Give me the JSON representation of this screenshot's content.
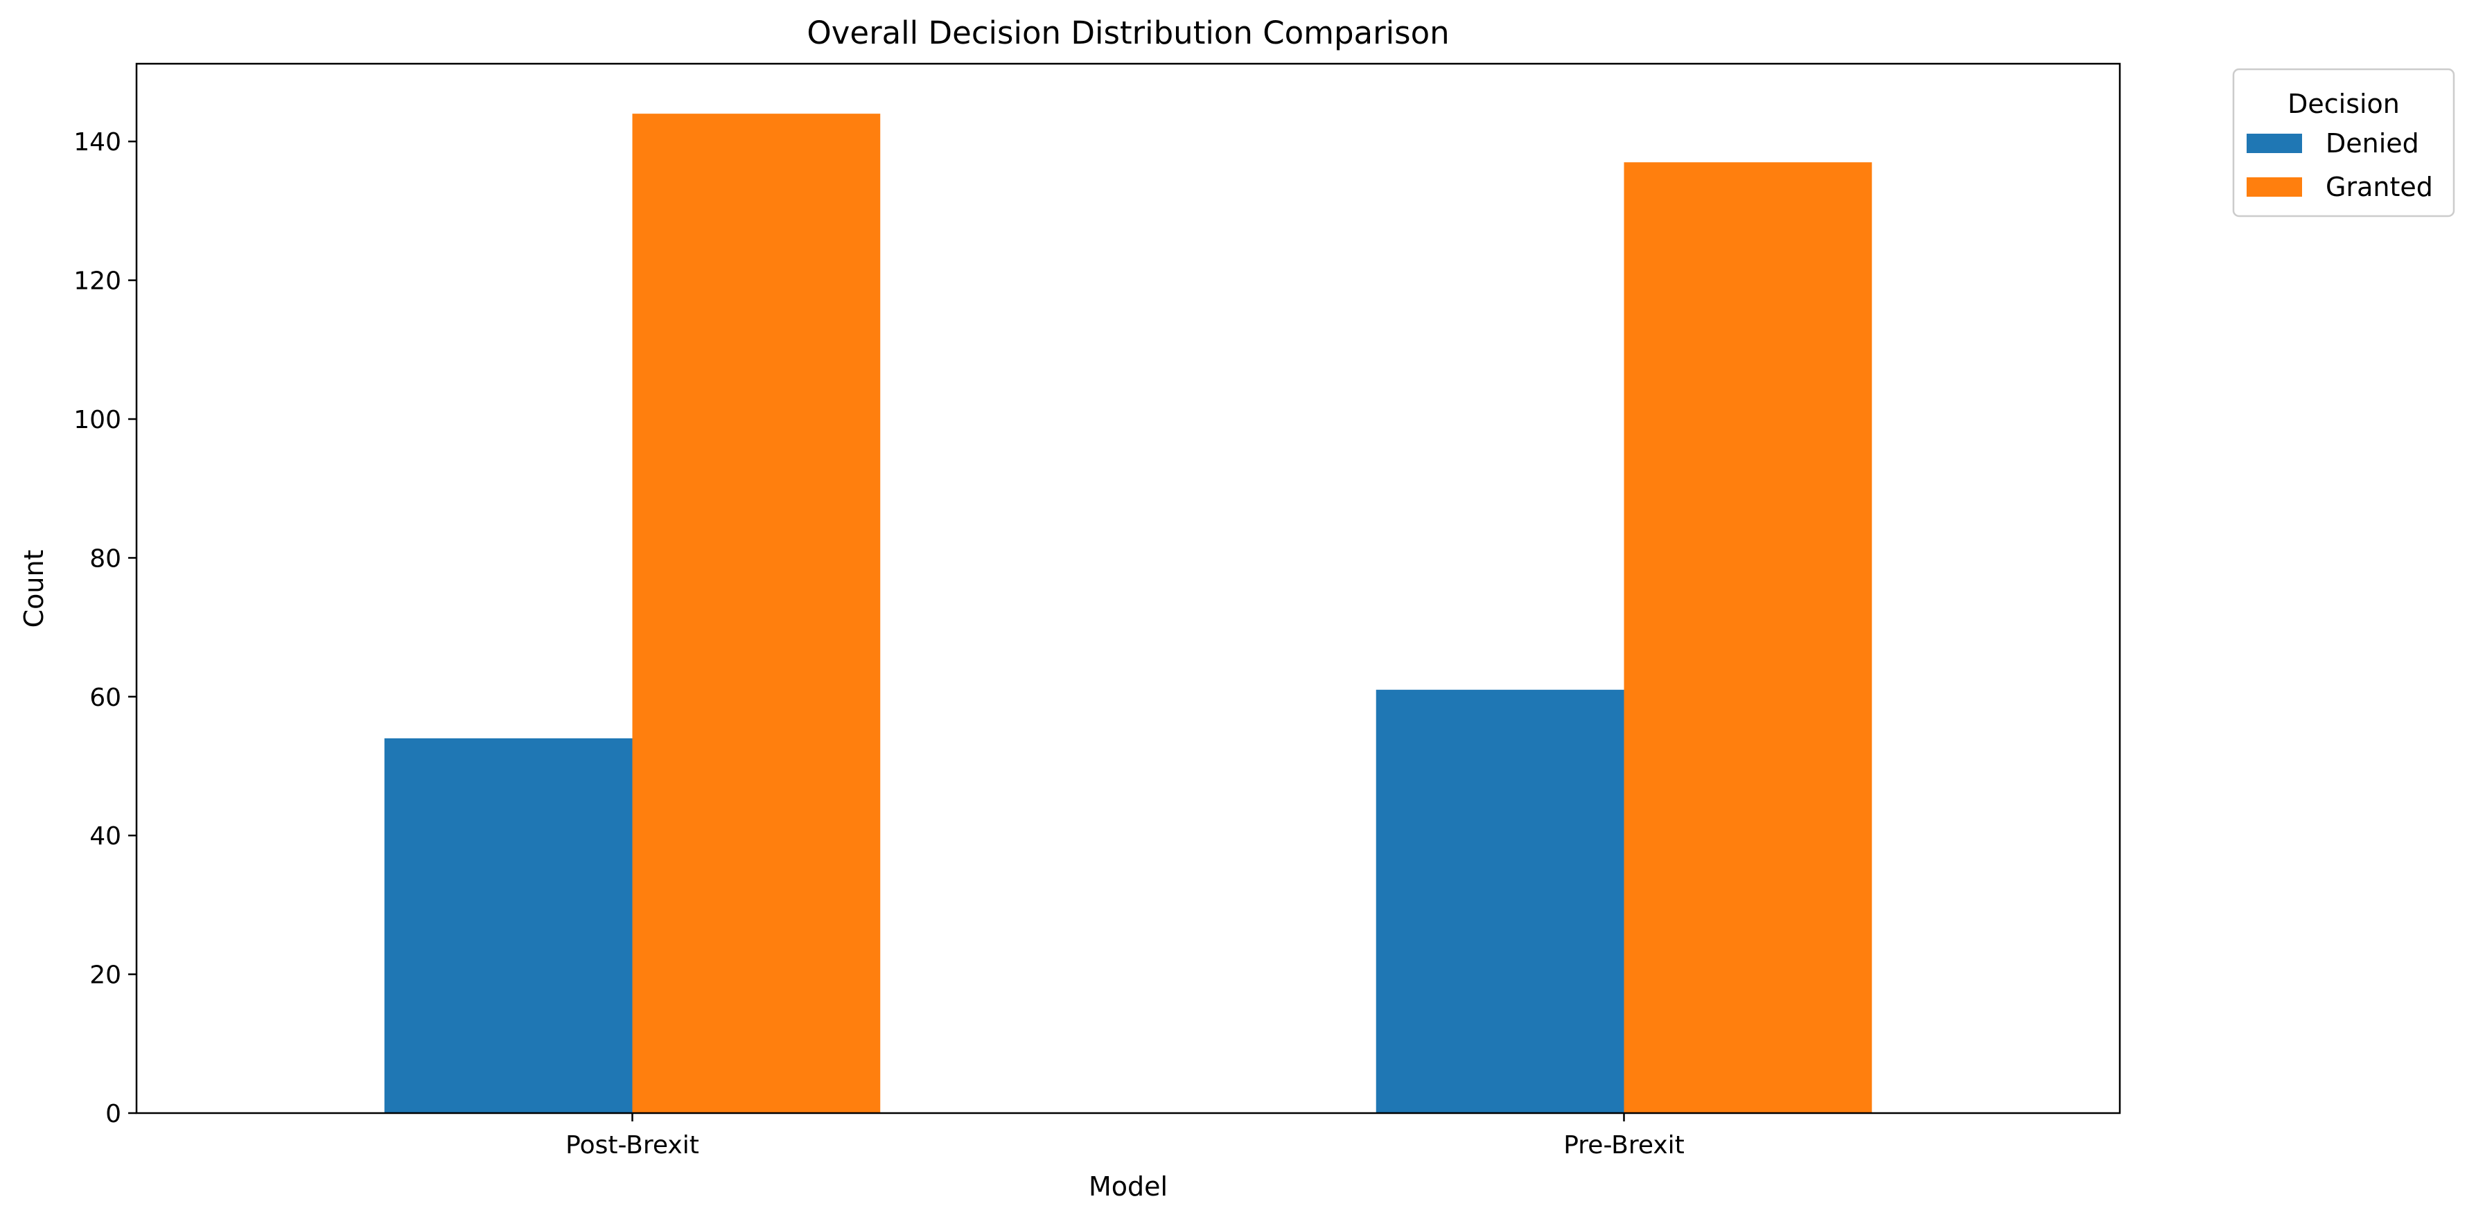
{
  "chart_data": {
    "type": "bar",
    "title": "Overall Decision Distribution Comparison",
    "xlabel": "Model",
    "ylabel": "Count",
    "categories": [
      "Post-Brexit",
      "Pre-Brexit"
    ],
    "series": [
      {
        "name": "Denied",
        "values": [
          54,
          61
        ],
        "color": "#1f77b4"
      },
      {
        "name": "Granted",
        "values": [
          144,
          137
        ],
        "color": "#ff7f0e"
      }
    ],
    "ylim": [
      0,
      151.2
    ],
    "yticks": [
      0,
      20,
      40,
      60,
      80,
      100,
      120,
      140
    ],
    "grid": false,
    "legend": {
      "title": "Decision",
      "placement": "outside top-right"
    }
  }
}
